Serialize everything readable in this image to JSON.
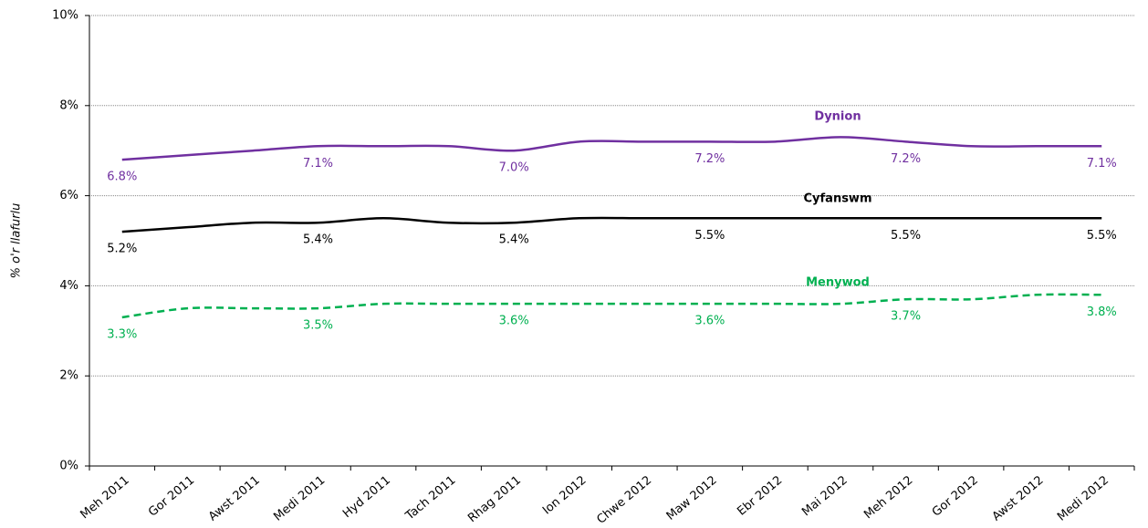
{
  "chart_data": {
    "type": "line",
    "y_label": "% o'r llafurlu",
    "categories": [
      "Meh 2011",
      "Gor 2011",
      "Awst 2011",
      "Medi 2011",
      "Hyd 2011",
      "Tach 2011",
      "Rhag 2011",
      "Ion 2012",
      "Chwe 2012",
      "Maw 2012",
      "Ebr 2012",
      "Mai 2012",
      "Meh 2012",
      "Gor 2012",
      "Awst 2012",
      "Medi 2012"
    ],
    "ylim": [
      0,
      10
    ],
    "yticks": [
      {
        "value": 0,
        "label": "0%"
      },
      {
        "value": 2,
        "label": "2%"
      },
      {
        "value": 4,
        "label": "4%"
      },
      {
        "value": 6,
        "label": "6%"
      },
      {
        "value": 8,
        "label": "8%"
      },
      {
        "value": 10,
        "label": "10%"
      }
    ],
    "grid": true,
    "series": [
      {
        "name": "Dynion",
        "color": "#7030a0",
        "dashed": false,
        "values": [
          6.8,
          6.9,
          7.0,
          7.1,
          7.1,
          7.1,
          7.0,
          7.2,
          7.2,
          7.2,
          7.2,
          7.3,
          7.2,
          7.1,
          7.1,
          7.1
        ],
        "value_labels": [
          "6.8%",
          null,
          null,
          "7.1%",
          null,
          null,
          "7.0%",
          null,
          null,
          "7.2%",
          null,
          null,
          "7.2%",
          null,
          null,
          "7.1%"
        ]
      },
      {
        "name": "Cyfanswm",
        "color": "#000000",
        "dashed": false,
        "values": [
          5.2,
          5.3,
          5.4,
          5.4,
          5.5,
          5.4,
          5.4,
          5.5,
          5.5,
          5.5,
          5.5,
          5.5,
          5.5,
          5.5,
          5.5,
          5.5
        ],
        "value_labels": [
          "5.2%",
          null,
          null,
          "5.4%",
          null,
          null,
          "5.4%",
          null,
          null,
          "5.5%",
          null,
          null,
          "5.5%",
          null,
          null,
          "5.5%"
        ]
      },
      {
        "name": "Menywod",
        "color": "#00b050",
        "dashed": true,
        "values": [
          3.3,
          3.5,
          3.5,
          3.5,
          3.6,
          3.6,
          3.6,
          3.6,
          3.6,
          3.6,
          3.6,
          3.6,
          3.7,
          3.7,
          3.8,
          3.8
        ],
        "value_labels": [
          "3.3%",
          null,
          null,
          "3.5%",
          null,
          null,
          "3.6%",
          null,
          null,
          "3.6%",
          null,
          null,
          "3.7%",
          null,
          null,
          "3.8%"
        ]
      }
    ]
  }
}
